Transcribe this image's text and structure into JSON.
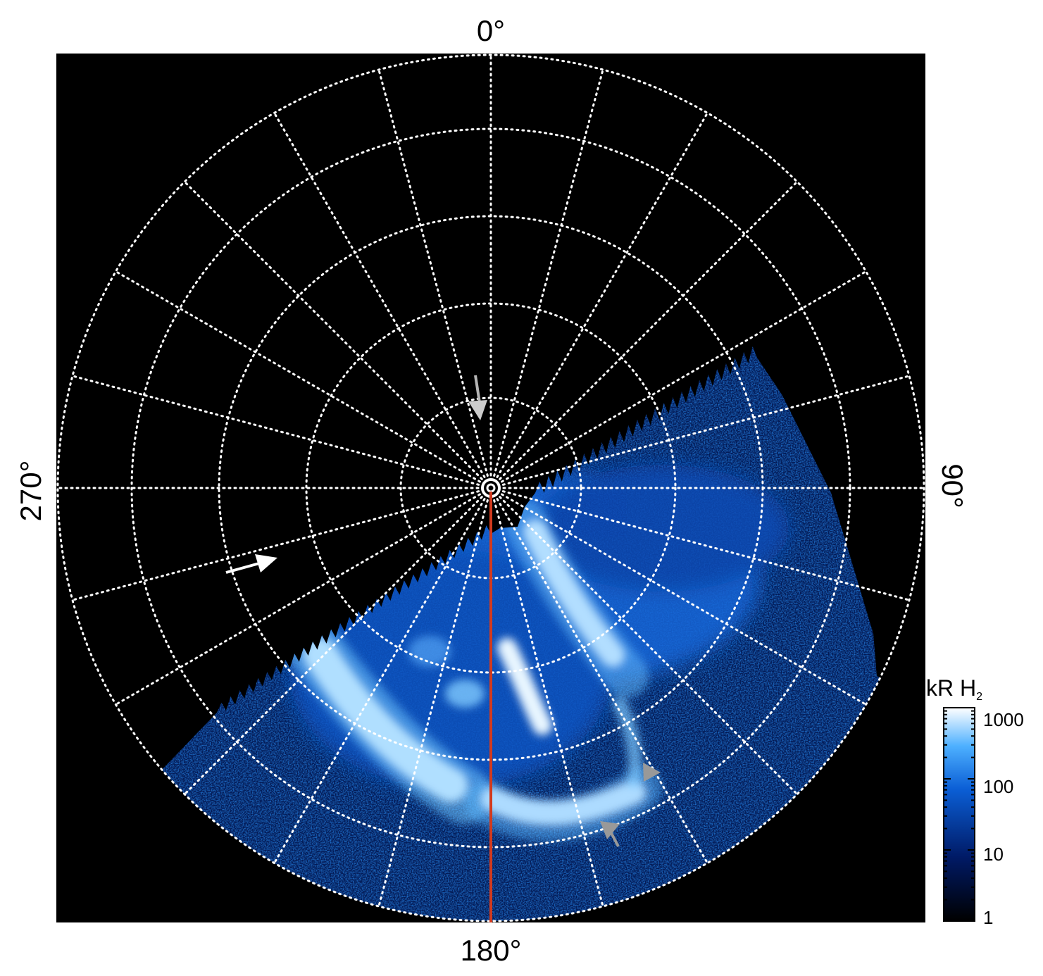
{
  "labels": {
    "top": "0°",
    "bottom": "180°",
    "left": "270°",
    "right": "90°"
  },
  "colorbar": {
    "title": "kR H",
    "title_subscript": "2",
    "ticks": [
      "1000",
      "100",
      "10",
      "1"
    ]
  },
  "colors": {
    "background": "#000000",
    "grid": "#ffffff",
    "meridian": "#d23a1e",
    "arrow_white": "#ffffff",
    "arrow_grey": "#b5b5b5",
    "aurora_low": "#001a4d",
    "aurora_mid": "#1c7fe8",
    "aurora_high": "#ffffff"
  }
}
